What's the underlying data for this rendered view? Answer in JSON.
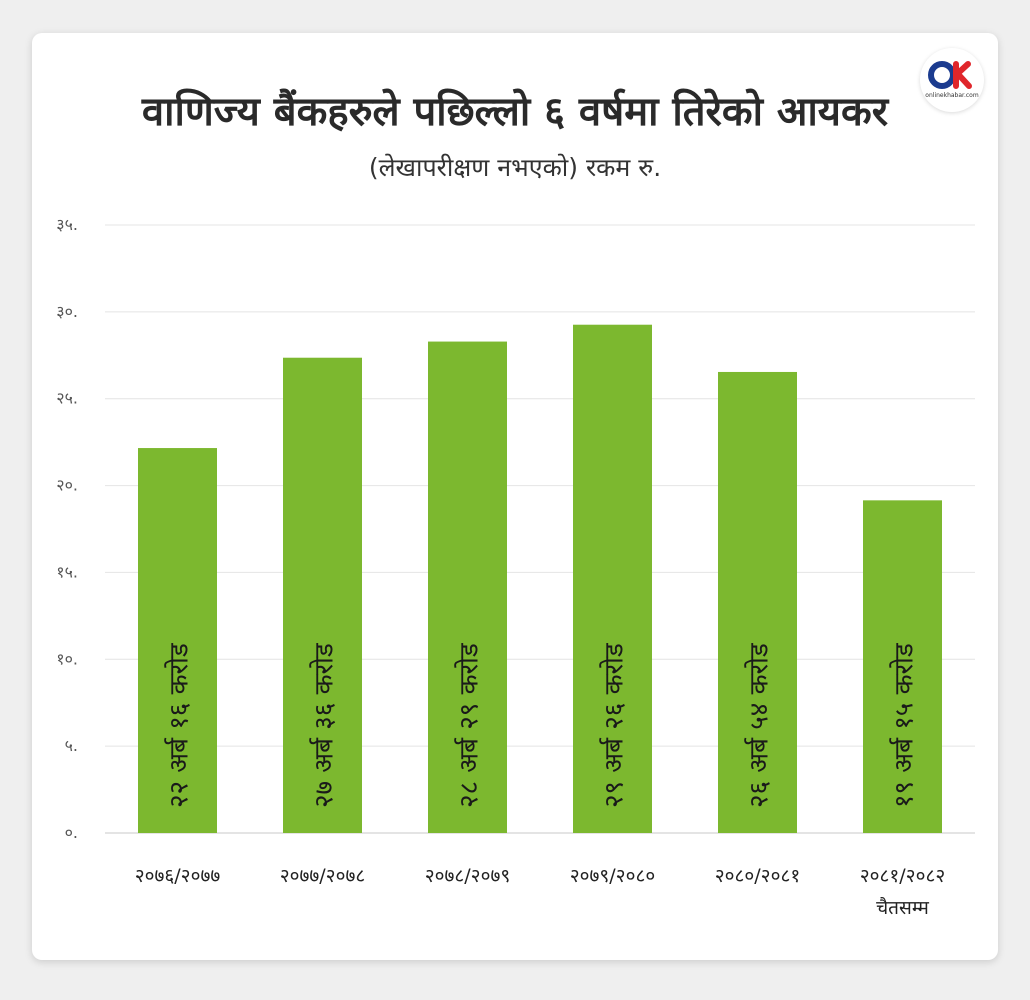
{
  "header": {
    "title": "वाणिज्य बैंकहरुले पछिल्लो ६ वर्षमा तिरेको आयकर",
    "subtitle": "(लेखापरीक्षण नभएको) रकम रु."
  },
  "logo": {
    "name": "onlinekhabar-logo",
    "text": "onlinekhabar.com"
  },
  "chart_data": {
    "type": "bar",
    "title": "वाणिज्य बैंकहरुले पछिल्लो ६ वर्षमा तिरेको आयकर",
    "subtitle": "(लेखापरीक्षण नभएको) रकम रु.",
    "categories": [
      "२०७६/२०७७",
      "२०७७/२०७८",
      "२०७८/२०७९",
      "२०७९/२०८०",
      "२०८०/२०८१",
      "२०८१/२०८२"
    ],
    "category_sublabels": [
      "",
      "",
      "",
      "",
      "",
      "चैतसम्म"
    ],
    "values": [
      22.16,
      27.36,
      28.29,
      29.26,
      26.54,
      19.15
    ],
    "data_labels": [
      "२२ अर्ब १६ करोड",
      "२७ अर्ब ३६ करोड",
      "२८ अर्ब २९ करोड",
      "२९ अर्ब २६ करोड",
      "२६ अर्ब ५४ करोड",
      "१९ अर्ब १५ करोड"
    ],
    "yticks": [
      0,
      5,
      10,
      15,
      20,
      25,
      30,
      35
    ],
    "ytick_labels": [
      "०.",
      "५.",
      "१०.",
      "१५.",
      "२०.",
      "२५.",
      "३०.",
      "३५."
    ],
    "ylim": [
      0,
      35
    ],
    "xlabel": "",
    "ylabel": "",
    "grid": true,
    "bar_color": "#7cb82f",
    "grid_color": "#e4e4e4"
  }
}
